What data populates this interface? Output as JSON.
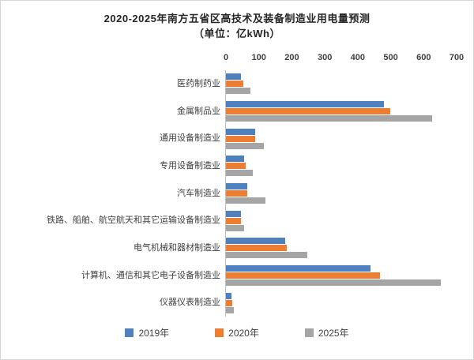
{
  "title": {
    "line1": "2020-2025年南方五省区高技术及装备制造业用电量预测",
    "line2": "（单位：亿kWh）"
  },
  "chart_data": {
    "type": "bar",
    "orientation": "horizontal",
    "title": "2020-2025年南方五省区高技术及装备制造业用电量预测（单位：亿kWh）",
    "x_axis": {
      "position": "top",
      "min": 0,
      "max": 700,
      "ticks": [
        0,
        100,
        200,
        300,
        400,
        500,
        600,
        700
      ]
    },
    "grid": false,
    "legend_position": "bottom",
    "categories": [
      "医药制药业",
      "金属制品业",
      "通用设备制造业",
      "专用设备制造业",
      "汽车制造业",
      "铁路、船舶、航空航天和其它运输设备制造业",
      "电气机械和器材制造业",
      "计算机、通信和其它电子设备制造业",
      "仪器仪表制造业"
    ],
    "series": [
      {
        "key": "2019",
        "name": "2019年",
        "color": "#4E81BD",
        "values": [
          45,
          480,
          88,
          55,
          65,
          45,
          180,
          440,
          18
        ]
      },
      {
        "key": "2020",
        "name": "2020年",
        "color": "#ED7D31",
        "values": [
          52,
          500,
          90,
          60,
          66,
          46,
          186,
          470,
          20
        ]
      },
      {
        "key": "2025",
        "name": "2025年",
        "color": "#A5A5A5",
        "values": [
          75,
          628,
          115,
          82,
          120,
          55,
          248,
          655,
          23
        ]
      }
    ]
  }
}
